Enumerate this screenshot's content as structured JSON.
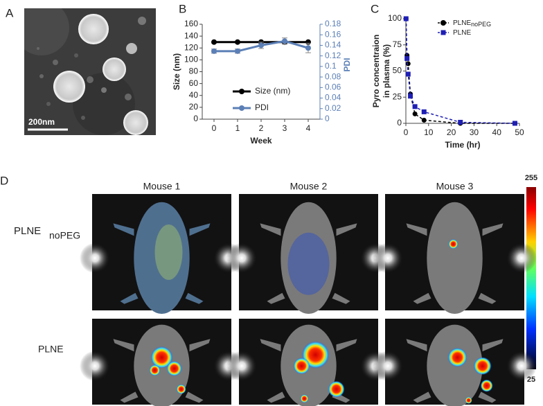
{
  "panels": {
    "a": "A",
    "b": "B",
    "c": "C",
    "d": "D"
  },
  "tem_image": {
    "scale_bar": "200nm"
  },
  "chart_data": [
    {
      "type": "line",
      "x": [
        0,
        1,
        2,
        3,
        4
      ],
      "xlim": [
        -0.5,
        4.5
      ],
      "xticks": [
        0,
        1,
        2,
        3,
        4
      ],
      "xlabel": "Week",
      "ylabel": "Size (nm)",
      "ylim": [
        0,
        160
      ],
      "yticks": [
        0,
        20,
        40,
        60,
        80,
        100,
        120,
        140,
        160
      ],
      "y2label": "PDI",
      "y2lim": [
        0,
        0.18
      ],
      "y2ticks": [
        0,
        0.02,
        0.04,
        0.06,
        0.08,
        0.1,
        0.12,
        0.14,
        0.16,
        0.18
      ],
      "legend": "lower center",
      "series": [
        {
          "name": "Size (nm)",
          "color": "#000000",
          "values": [
            130,
            130,
            130,
            130,
            130
          ]
        },
        {
          "name": "PDI",
          "color": "#5b7fb6",
          "axis": "y2",
          "values": [
            0.129,
            0.129,
            0.14,
            0.148,
            0.135
          ],
          "errors": [
            0.004,
            0.004,
            0.006,
            0.006,
            0.009
          ]
        }
      ]
    },
    {
      "type": "line",
      "x": [
        0.08,
        0.5,
        1,
        2,
        4,
        8,
        24,
        48
      ],
      "xlim": [
        0,
        50
      ],
      "xticks": [
        0,
        10,
        20,
        30,
        40,
        50
      ],
      "xlabel": "Time (hr)",
      "ylabel": [
        "Pyro concentraion",
        "in plasma (%)"
      ],
      "ylim": [
        0,
        100
      ],
      "yticks": [
        0,
        25,
        50,
        75,
        100
      ],
      "legend": "upper right",
      "dashed": true,
      "series": [
        {
          "name": "PLNE",
          "name_subscript": "noPEG",
          "color": "#000000",
          "marker": "circle",
          "values": [
            100,
            65,
            57,
            28,
            9,
            3,
            0,
            0
          ]
        },
        {
          "name": "PLNE",
          "color": "#1f1fb4",
          "marker": "square",
          "values": [
            100,
            62,
            47,
            26,
            16,
            11,
            1,
            0
          ]
        }
      ]
    }
  ],
  "imaging": {
    "columns": [
      "Mouse 1",
      "Mouse 2",
      "Mouse 3"
    ],
    "rows": [
      {
        "label": "PLNE",
        "label_subscript": "noPEG"
      },
      {
        "label": "PLNE"
      }
    ],
    "colorbar": {
      "max": 255,
      "min": 25
    }
  }
}
